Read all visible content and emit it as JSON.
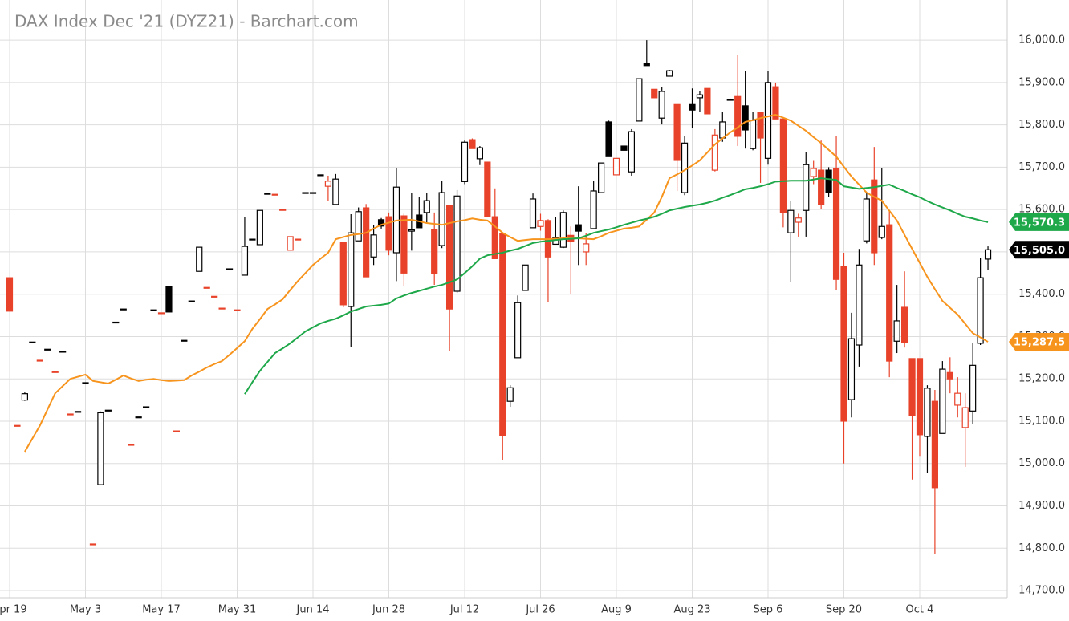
{
  "chart_data": {
    "type": "candlestick",
    "title": "DAX Index Dec '21 (DYZ21) - Barchart.com",
    "categories": [
      "Apr 19",
      null,
      null,
      null,
      null,
      null,
      null,
      null,
      null,
      null,
      "May 3",
      null,
      null,
      null,
      null,
      null,
      null,
      null,
      null,
      null,
      "May 17",
      null,
      null,
      null,
      null,
      null,
      null,
      null,
      null,
      null,
      "May 31",
      null,
      null,
      null,
      null,
      null,
      null,
      null,
      null,
      null,
      "Jun 14",
      null,
      null,
      null,
      null,
      null,
      null,
      null,
      null,
      null,
      "Jun 28",
      null,
      null,
      null,
      null,
      null,
      null,
      null,
      null,
      null,
      "Jul 12",
      null,
      null,
      null,
      null,
      null,
      null,
      null,
      null,
      null,
      "Jul 26",
      null,
      null,
      null,
      null,
      null,
      null,
      null,
      null,
      null,
      "Aug 9",
      null,
      null,
      null,
      null,
      null,
      null,
      null,
      null,
      null,
      "Aug 23",
      null,
      null,
      null,
      null,
      null,
      null,
      null,
      null,
      null,
      "Sep 6",
      null,
      null,
      null,
      null,
      null,
      null,
      null,
      null,
      null,
      "Sep 20",
      null,
      null,
      null,
      null,
      null,
      null,
      null,
      null,
      null,
      "Oct 4",
      null,
      null,
      null,
      null,
      null,
      null,
      null,
      null,
      null
    ],
    "open": [
      15439,
      15090,
      15150,
      15287,
      15244,
      15270,
      15217,
      15265,
      15117,
      15123,
      15191,
      14810,
      14950,
      15126,
      15334,
      15365,
      15045,
      15110,
      15134,
      15363,
      15356,
      15418,
      15077,
      15291,
      15384,
      15454,
      15416,
      15395,
      15367,
      15460,
      15363,
      15445,
      15530,
      15517,
      15638,
      15636,
      15600,
      15504,
      15530,
      15640,
      15640,
      15682,
      15655,
      15612,
      15522,
      15371,
      15526,
      15604,
      15488,
      15576,
      15583,
      15498,
      15585,
      15549,
      15587,
      15593,
      15553,
      15515,
      15610,
      15407,
      15666,
      15765,
      15720,
      15712,
      15583,
      15543,
      15147,
      15250,
      15409,
      15557,
      15560,
      15574,
      15518,
      15511,
      15539,
      15564,
      15500,
      15555,
      15640,
      15807,
      15682,
      15750,
      15689,
      15809,
      15945,
      15884,
      15816,
      15915,
      15848,
      15640,
      15848,
      15864,
      15886,
      15693,
      15769,
      15860,
      15867,
      15845,
      15744,
      15829,
      15721,
      15890,
      15814,
      15545,
      15570,
      15598,
      15678,
      15693,
      15693,
      15697,
      15466,
      15151,
      15280,
      15526,
      15670,
      15534,
      15564,
      15289,
      15369,
      15248,
      15248,
      15064,
      15147,
      15071,
      15215,
      15138,
      15085,
      15124,
      15284,
      15483
    ],
    "high": [
      15440,
      15090,
      15168,
      15287,
      15244,
      15270,
      15217,
      15265,
      15117,
      15123,
      15191,
      14810,
      15123,
      15126,
      15334,
      15365,
      15045,
      15110,
      15134,
      15363,
      15356,
      15420,
      15077,
      15291,
      15384,
      15511,
      15416,
      15395,
      15367,
      15460,
      15363,
      15583,
      15530,
      15598,
      15638,
      15636,
      15600,
      15536,
      15530,
      15640,
      15640,
      15682,
      15680,
      15684,
      15522,
      15589,
      15605,
      15613,
      15564,
      15580,
      15593,
      15697,
      15590,
      15640,
      15629,
      15640,
      15593,
      15668,
      15610,
      15646,
      15763,
      15768,
      15750,
      15712,
      15650,
      15545,
      15185,
      15397,
      15469,
      15638,
      15590,
      15577,
      15583,
      15598,
      15560,
      15655,
      15545,
      15668,
      15710,
      15810,
      15721,
      15750,
      15790,
      15909,
      16000,
      15884,
      15890,
      15930,
      15848,
      15773,
      15886,
      15880,
      15886,
      15790,
      15830,
      15862,
      15966,
      15928,
      15830,
      15830,
      15928,
      15900,
      15814,
      15621,
      15590,
      15735,
      15715,
      15763,
      15700,
      15773,
      15498,
      15356,
      15507,
      15640,
      15748,
      15697,
      15598,
      15422,
      15454,
      15248,
      15248,
      15185,
      15174,
      15242,
      15251,
      15204,
      15166,
      15284,
      15485,
      15513
    ],
    "low": [
      15360,
      15090,
      15148,
      15287,
      15244,
      15270,
      15217,
      15265,
      15117,
      15123,
      15191,
      14810,
      14950,
      15126,
      15334,
      15365,
      15045,
      15110,
      15134,
      15363,
      15356,
      15358,
      15077,
      15291,
      15384,
      15454,
      15416,
      15395,
      15367,
      15460,
      15363,
      15445,
      15530,
      15517,
      15638,
      15636,
      15600,
      15504,
      15530,
      15640,
      15640,
      15682,
      15620,
      15612,
      15369,
      15276,
      15526,
      15441,
      15469,
      15555,
      15492,
      15431,
      15420,
      15503,
      15557,
      15568,
      15422,
      15509,
      15265,
      15403,
      15660,
      15744,
      15705,
      15583,
      15484,
      15009,
      15134,
      15250,
      15409,
      15557,
      15550,
      15382,
      15517,
      15509,
      15400,
      15469,
      15469,
      15555,
      15640,
      15725,
      15682,
      15740,
      15680,
      15809,
      15940,
      15864,
      15801,
      15915,
      15644,
      15634,
      15792,
      15830,
      15826,
      15690,
      15760,
      15858,
      15750,
      15744,
      15740,
      15663,
      15706,
      15814,
      15558,
      15428,
      15536,
      15536,
      15660,
      15602,
      15630,
      15409,
      15000,
      15109,
      15229,
      15520,
      15469,
      15530,
      15204,
      15261,
      15274,
      14962,
      15018,
      14977,
      14787,
      15071,
      15166,
      15109,
      14992,
      15094,
      15280,
      15458
    ],
    "close": [
      15360,
      15090,
      15165,
      15287,
      15244,
      15270,
      15217,
      15265,
      15117,
      15123,
      15191,
      14810,
      15120,
      15126,
      15334,
      15365,
      15045,
      15110,
      15134,
      15363,
      15356,
      15358,
      15077,
      15291,
      15384,
      15511,
      15416,
      15395,
      15367,
      15460,
      15363,
      15513,
      15530,
      15598,
      15638,
      15636,
      15600,
      15536,
      15530,
      15640,
      15640,
      15682,
      15667,
      15672,
      15375,
      15545,
      15595,
      15441,
      15540,
      15561,
      15504,
      15653,
      15450,
      15552,
      15557,
      15621,
      15449,
      15640,
      15365,
      15632,
      15759,
      15744,
      15746,
      15583,
      15484,
      15066,
      15179,
      15380,
      15469,
      15625,
      15574,
      15488,
      15534,
      15593,
      15524,
      15549,
      15519,
      15644,
      15710,
      15725,
      15721,
      15740,
      15784,
      15909,
      15940,
      15864,
      15879,
      15928,
      15716,
      15757,
      15835,
      15871,
      15826,
      15776,
      15807,
      15860,
      15773,
      15788,
      15811,
      15769,
      15900,
      15814,
      15593,
      15598,
      15580,
      15706,
      15697,
      15612,
      15640,
      15435,
      15100,
      15295,
      15469,
      15625,
      15498,
      15560,
      15242,
      15337,
      15286,
      15113,
      15068,
      15178,
      14943,
      15223,
      15200,
      15166,
      15132,
      15232,
      15439,
      15505
    ],
    "close_label": "15,505.0",
    "up_color": "#000000",
    "down_color": "#e8432a",
    "lines": [
      {
        "color": "#f7941d",
        "last_value_label": "15,287.5",
        "values": [
          null,
          null,
          15028,
          15059,
          15090,
          15128,
          15166,
          15183,
          15200,
          15205,
          15210,
          15195,
          15192,
          15189,
          15198,
          15208,
          15201,
          15195,
          15198,
          15200,
          15197,
          15195,
          15196,
          15197,
          15208,
          15217,
          15227,
          15235,
          15242,
          15257,
          15273,
          15289,
          15318,
          15341,
          15365,
          15376,
          15388,
          15410,
          15431,
          15450,
          15469,
          15484,
          15498,
          15530,
          15535,
          15540,
          15542,
          15545,
          15555,
          15564,
          15569,
          15574,
          15575,
          15576,
          15572,
          15568,
          15566,
          15564,
          15568,
          15572,
          15575,
          15579,
          15576,
          15574,
          15560,
          15545,
          15535,
          15526,
          15528,
          15530,
          15530,
          15530,
          15531,
          15532,
          15532,
          15532,
          15531,
          15530,
          15537,
          15545,
          15550,
          15555,
          15557,
          15560,
          15576,
          15593,
          15630,
          15674,
          15683,
          15693,
          15704,
          15716,
          15735,
          15754,
          15768,
          15782,
          15794,
          15807,
          15811,
          15816,
          15820,
          15824,
          15817,
          15810,
          15798,
          15786,
          15771,
          15757,
          15741,
          15725,
          15701,
          15678,
          15659,
          15640,
          15630,
          15621,
          15597,
          15574,
          15540,
          15507,
          15474,
          15441,
          15412,
          15384,
          15368,
          15352,
          15330,
          15308,
          15298,
          15287.5
        ]
      },
      {
        "color": "#1ea84a",
        "last_value_label": "15,570.3",
        "values": [
          null,
          null,
          null,
          null,
          null,
          null,
          null,
          null,
          null,
          null,
          null,
          null,
          null,
          null,
          null,
          null,
          null,
          null,
          null,
          null,
          null,
          null,
          null,
          null,
          null,
          null,
          null,
          null,
          null,
          null,
          null,
          15164,
          15192,
          15219,
          15240,
          15261,
          15272,
          15284,
          15298,
          15312,
          15322,
          15331,
          15337,
          15342,
          15350,
          15359,
          15365,
          15371,
          15373,
          15375,
          15378,
          15390,
          15397,
          15403,
          15408,
          15413,
          15418,
          15422,
          15428,
          15435,
          15450,
          15466,
          15484,
          15492,
          15495,
          15498,
          15503,
          15507,
          15514,
          15521,
          15524,
          15526,
          15528,
          15530,
          15531,
          15532,
          15538,
          15545,
          15549,
          15553,
          15558,
          15564,
          15569,
          15574,
          15578,
          15583,
          15590,
          15598,
          15602,
          15606,
          15609,
          15612,
          15616,
          15621,
          15628,
          15634,
          15641,
          15648,
          15651,
          15655,
          15660,
          15666,
          15667,
          15668,
          15668,
          15668,
          15671,
          15674,
          15672,
          15670,
          15655,
          15652,
          15649,
          15651,
          15653,
          15656,
          15659,
          15651,
          15644,
          15636,
          15629,
          15620,
          15612,
          15605,
          15598,
          15590,
          15583,
          15579,
          15574,
          15570.3
        ]
      }
    ],
    "ylim": [
      14683,
      16095
    ],
    "yticks": [
      {
        "value": 14700,
        "label": "14,700.0"
      },
      {
        "value": 14800,
        "label": "14,800.0"
      },
      {
        "value": 14900,
        "label": "14,900.0"
      },
      {
        "value": 15000,
        "label": "15,000.0"
      },
      {
        "value": 15100,
        "label": "15,100.0"
      },
      {
        "value": 15200,
        "label": "15,200.0"
      },
      {
        "value": 15300,
        "label": "15,300.0"
      },
      {
        "value": 15400,
        "label": "15,400.0"
      },
      {
        "value": 15500,
        "label": "15,500.0"
      },
      {
        "value": 15600,
        "label": "15,600.0"
      },
      {
        "value": 15700,
        "label": "15,700.0"
      },
      {
        "value": 15800,
        "label": "15,800.0"
      },
      {
        "value": 15900,
        "label": "15,900.0"
      },
      {
        "value": 16000,
        "label": "16,000.0"
      }
    ],
    "grid": true
  }
}
